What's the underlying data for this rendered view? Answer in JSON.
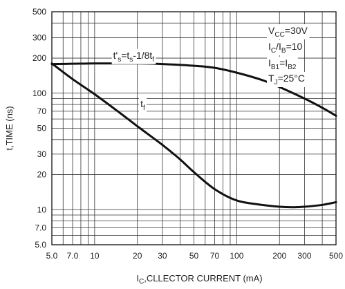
{
  "chart_data": {
    "type": "line",
    "xscale": "log",
    "yscale": "log",
    "xlim": [
      5,
      500
    ],
    "ylim": [
      5,
      500
    ],
    "grid": true,
    "xlabel": {
      "prefix": "I",
      "sub": "C",
      "rest": ",CLLECTOR CURRENT (mA)"
    },
    "ylabel": "t,TIME (ns)",
    "x_ticks": [
      {
        "value": 5,
        "label": "5.0"
      },
      {
        "value": 7,
        "label": "7.0"
      },
      {
        "value": 10,
        "label": "10"
      },
      {
        "value": 20,
        "label": "20"
      },
      {
        "value": 30,
        "label": "30"
      },
      {
        "value": 50,
        "label": "50"
      },
      {
        "value": 70,
        "label": "70"
      },
      {
        "value": 100,
        "label": "100"
      },
      {
        "value": 200,
        "label": "200"
      },
      {
        "value": 300,
        "label": "300"
      },
      {
        "value": 500,
        "label": "500"
      }
    ],
    "y_ticks": [
      {
        "value": 500,
        "label": "500"
      },
      {
        "value": 300,
        "label": "300"
      },
      {
        "value": 200,
        "label": "200"
      },
      {
        "value": 100,
        "label": "100"
      },
      {
        "value": 70,
        "label": "70"
      },
      {
        "value": 50,
        "label": "50"
      },
      {
        "value": 30,
        "label": "30"
      },
      {
        "value": 20,
        "label": "20"
      },
      {
        "value": 10,
        "label": "10"
      },
      {
        "value": 7,
        "label": "7.0"
      },
      {
        "value": 5,
        "label": "5.0"
      }
    ],
    "x_grid": [
      5,
      6,
      7,
      8,
      9,
      10,
      20,
      30,
      40,
      50,
      60,
      70,
      80,
      90,
      100,
      200,
      300,
      400,
      500
    ],
    "y_grid": [
      5,
      6,
      7,
      8,
      9,
      10,
      20,
      30,
      40,
      50,
      60,
      70,
      80,
      90,
      100,
      200,
      300,
      400,
      500
    ],
    "series": [
      {
        "name": "t's=ts-1/8tf",
        "label_parts": [
          {
            "t": "t'",
            "s": false
          },
          {
            "t": "s",
            "s": true
          },
          {
            "t": "=t",
            "s": false
          },
          {
            "t": "s",
            "s": true
          },
          {
            "t": "-1/8t",
            "s": false
          },
          {
            "t": "f",
            "s": true
          }
        ],
        "x": [
          5,
          7,
          10,
          20,
          30,
          50,
          70,
          100,
          150,
          200,
          300,
          400,
          500
        ],
        "y": [
          178,
          179,
          180,
          180,
          178,
          172,
          165,
          150,
          130,
          113,
          90,
          75,
          64
        ]
      },
      {
        "name": "tf",
        "label_parts": [
          {
            "t": "t",
            "s": false
          },
          {
            "t": "f",
            "s": true
          }
        ],
        "x": [
          5,
          7,
          10,
          15,
          20,
          30,
          40,
          50,
          70,
          100,
          150,
          200,
          250,
          300,
          400,
          500
        ],
        "y": [
          180,
          132,
          98,
          68,
          52,
          36,
          27,
          21,
          15,
          12,
          11,
          10.6,
          10.5,
          10.6,
          11,
          11.6
        ]
      }
    ],
    "annotations": [
      [
        {
          "t": "V",
          "s": false
        },
        {
          "t": "CC",
          "s": true
        },
        {
          "t": "=30V",
          "s": false
        }
      ],
      [
        {
          "t": "I",
          "s": false
        },
        {
          "t": "C",
          "s": true
        },
        {
          "t": "/I",
          "s": false
        },
        {
          "t": "B",
          "s": true
        },
        {
          "t": "=10",
          "s": false
        }
      ],
      [
        {
          "t": "I",
          "s": false
        },
        {
          "t": "B1",
          "s": true
        },
        {
          "t": "=I",
          "s": false
        },
        {
          "t": "B2",
          "s": true
        }
      ],
      [
        {
          "t": "T",
          "s": false
        },
        {
          "t": "J",
          "s": true
        },
        {
          "t": "=25°C",
          "s": false
        }
      ]
    ]
  }
}
